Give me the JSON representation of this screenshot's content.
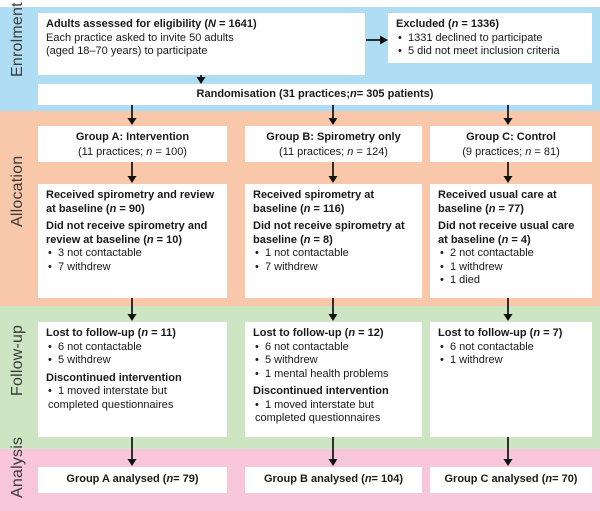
{
  "colors": {
    "enrolment_band": "#AFDDF3",
    "allocation_band": "#F9C8AB",
    "followup_band": "#CDE5C3",
    "analysis_band": "#F7C6DB",
    "box_bg": "#FFFFFF",
    "arrow": "#111111",
    "label_text": "#3C3C3C"
  },
  "side_labels": {
    "enrolment": "Enrolment",
    "allocation": "Allocation",
    "followup": "Follow-up",
    "analysis": "Analysis"
  },
  "enrolment": {
    "eligibility": {
      "title": "Adults assessed for eligibility (N = 1641)",
      "line1": "Each practice asked to invite 50 adults",
      "line2": "(aged 18–70 years) to participate"
    },
    "excluded": {
      "title": "Excluded (n = 1336)",
      "bullet1": "1331 declined to participate",
      "bullet2": "5 did not meet inclusion criteria"
    },
    "randomisation": "Randomisation (31 practices; n = 305 patients)"
  },
  "groups": [
    {
      "header_title": "Group A: Intervention",
      "header_sub": "(11 practices; n = 100)",
      "allocation": {
        "received_title": "Received spirometry and review at baseline (n = 90)",
        "not_received_title": "Did not receive spirometry and review at baseline (n = 10)",
        "bullet1": "3 not contactable",
        "bullet2": "7 withdrew"
      },
      "followup": {
        "lost_title": "Lost to follow-up (n = 11)",
        "lost_bullet1": "6 not contactable",
        "lost_bullet2": "5 withdrew",
        "discontinued_title": "Discontinued intervention",
        "discontinued_bullet1": "1 moved interstate but completed questionnaires"
      },
      "analysed": "Group A analysed (n = 79)"
    },
    {
      "header_title": "Group B: Spirometry only",
      "header_sub": "(11 practices; n = 124)",
      "allocation": {
        "received_title": "Received spirometry at baseline (n = 116)",
        "not_received_title": "Did not receive spirometry at baseline (n = 8)",
        "bullet1": "1 not contactable",
        "bullet2": "7 withdrew"
      },
      "followup": {
        "lost_title": "Lost to follow-up (n = 12)",
        "lost_bullet1": "6 not contactable",
        "lost_bullet2": "5 withdrew",
        "lost_bullet3": "1 mental health problems",
        "discontinued_title": "Discontinued intervention",
        "discontinued_bullet1": "1 moved interstate but completed questionnaires"
      },
      "analysed": "Group B analysed (n = 104)"
    },
    {
      "header_title": "Group C: Control",
      "header_sub": "(9 practices; n = 81)",
      "allocation": {
        "received_title": "Received usual care at baseline (n = 77)",
        "not_received_title": "Did not receive usual care at baseline (n = 4)",
        "bullet1": "2 not contactable",
        "bullet2": "1 withdrew",
        "bullet3": "1 died"
      },
      "followup": {
        "lost_title": "Lost to follow-up (n = 7)",
        "lost_bullet1": "6 not contactable",
        "lost_bullet2": "1 withdrew"
      },
      "analysed": "Group C analysed (n = 70)"
    }
  ]
}
